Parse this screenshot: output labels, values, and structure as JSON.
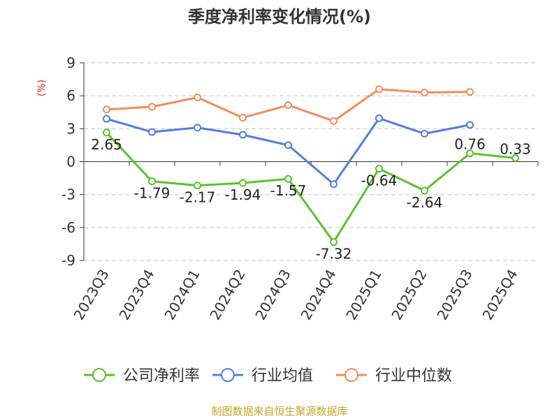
{
  "chart_data": {
    "type": "line",
    "title": "季度净利率变化情况(%)",
    "ylabel": "(%)",
    "ylim": [
      -9,
      9
    ],
    "yticks": [
      9,
      6,
      3,
      0,
      -3,
      -6,
      -9
    ],
    "categories": [
      "2023Q3",
      "2023Q4",
      "2024Q1",
      "2024Q2",
      "2024Q3",
      "2024Q4",
      "2025Q1",
      "2025Q2",
      "2025Q3",
      "2025Q4"
    ],
    "series": [
      {
        "name": "公司净利率",
        "color": "#5ac229",
        "values": [
          2.65,
          -1.79,
          -2.17,
          -1.94,
          -1.57,
          -7.32,
          -0.64,
          -2.64,
          0.76,
          0.33
        ],
        "labels": [
          "2.65",
          "-1.79",
          "-2.17",
          "-1.94",
          "-1.57",
          "-7.32",
          "-0.64",
          "-2.64",
          "0.76",
          "0.33"
        ]
      },
      {
        "name": "行业均值",
        "color": "#4f7fdc",
        "values": [
          3.9,
          2.7,
          3.1,
          2.45,
          1.5,
          -2.05,
          3.95,
          2.55,
          3.35,
          null
        ]
      },
      {
        "name": "行业中位数",
        "color": "#f58b5b",
        "values": [
          4.75,
          5.0,
          5.85,
          4.0,
          5.15,
          3.7,
          6.6,
          6.3,
          6.35,
          null
        ]
      }
    ],
    "grid": true,
    "legend_position": "bottom"
  },
  "source_text": "制图数据来自恒生聚源数据库"
}
